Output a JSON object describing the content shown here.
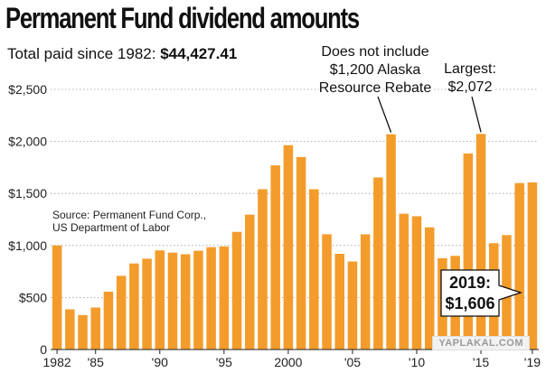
{
  "header": {
    "title": "Permanent Fund dividend amounts",
    "subtitle_label": "Total paid since 1982:",
    "subtitle_value": "$44,427.41"
  },
  "source": {
    "line1": "Source: Permanent Fund Corp.,",
    "line2": "US Department of Labor"
  },
  "watermark": "YAPLAKAL.COM",
  "chart_data": {
    "type": "bar",
    "title": "Permanent Fund dividend amounts",
    "xlabel": "",
    "ylabel": "",
    "ylim": [
      0,
      2500
    ],
    "grid": true,
    "bar_color": "#f39c2b",
    "y_ticks": [
      0,
      500,
      1000,
      1500,
      2000,
      2500
    ],
    "y_tick_labels": [
      "0",
      "$500",
      "$1,000",
      "$1,500",
      "$2,000",
      "$2,500"
    ],
    "x_ticks": [
      1982,
      1985,
      1990,
      1995,
      2000,
      2005,
      2010,
      2015,
      2019
    ],
    "x_tick_labels": [
      "1982",
      "'85",
      "'90",
      "'95",
      "2000",
      "'05",
      "'10",
      "'15",
      "'19"
    ],
    "categories": [
      1982,
      1983,
      1984,
      1985,
      1986,
      1987,
      1988,
      1989,
      1990,
      1991,
      1992,
      1993,
      1994,
      1995,
      1996,
      1997,
      1998,
      1999,
      2000,
      2001,
      2002,
      2003,
      2004,
      2005,
      2006,
      2007,
      2008,
      2009,
      2010,
      2011,
      2012,
      2013,
      2014,
      2015,
      2016,
      2017,
      2018,
      2019
    ],
    "values": [
      1000,
      386.15,
      331.29,
      404.0,
      556.26,
      708.19,
      826.93,
      873.16,
      952.63,
      931.34,
      915.84,
      949.46,
      983.9,
      990.3,
      1130.68,
      1296.54,
      1540.88,
      1769.84,
      1963.86,
      1850.28,
      1540.76,
      1107.56,
      919.84,
      845.76,
      1106.96,
      1654.0,
      2069.0,
      1305.0,
      1281.0,
      1174.0,
      878.0,
      900.0,
      1884.0,
      2072.0,
      1022.0,
      1100.0,
      1600.0,
      1606.0
    ],
    "annotations": [
      {
        "text_lines": [
          "Does not include",
          "$1,200 Alaska",
          "Resource Rebate"
        ],
        "target": 2008
      },
      {
        "text_lines": [
          "Largest:",
          "$2,072"
        ],
        "target": 2015
      },
      {
        "text_lines": [
          "2019:",
          "$1,606"
        ],
        "target": 2019,
        "boxed": true
      }
    ]
  }
}
